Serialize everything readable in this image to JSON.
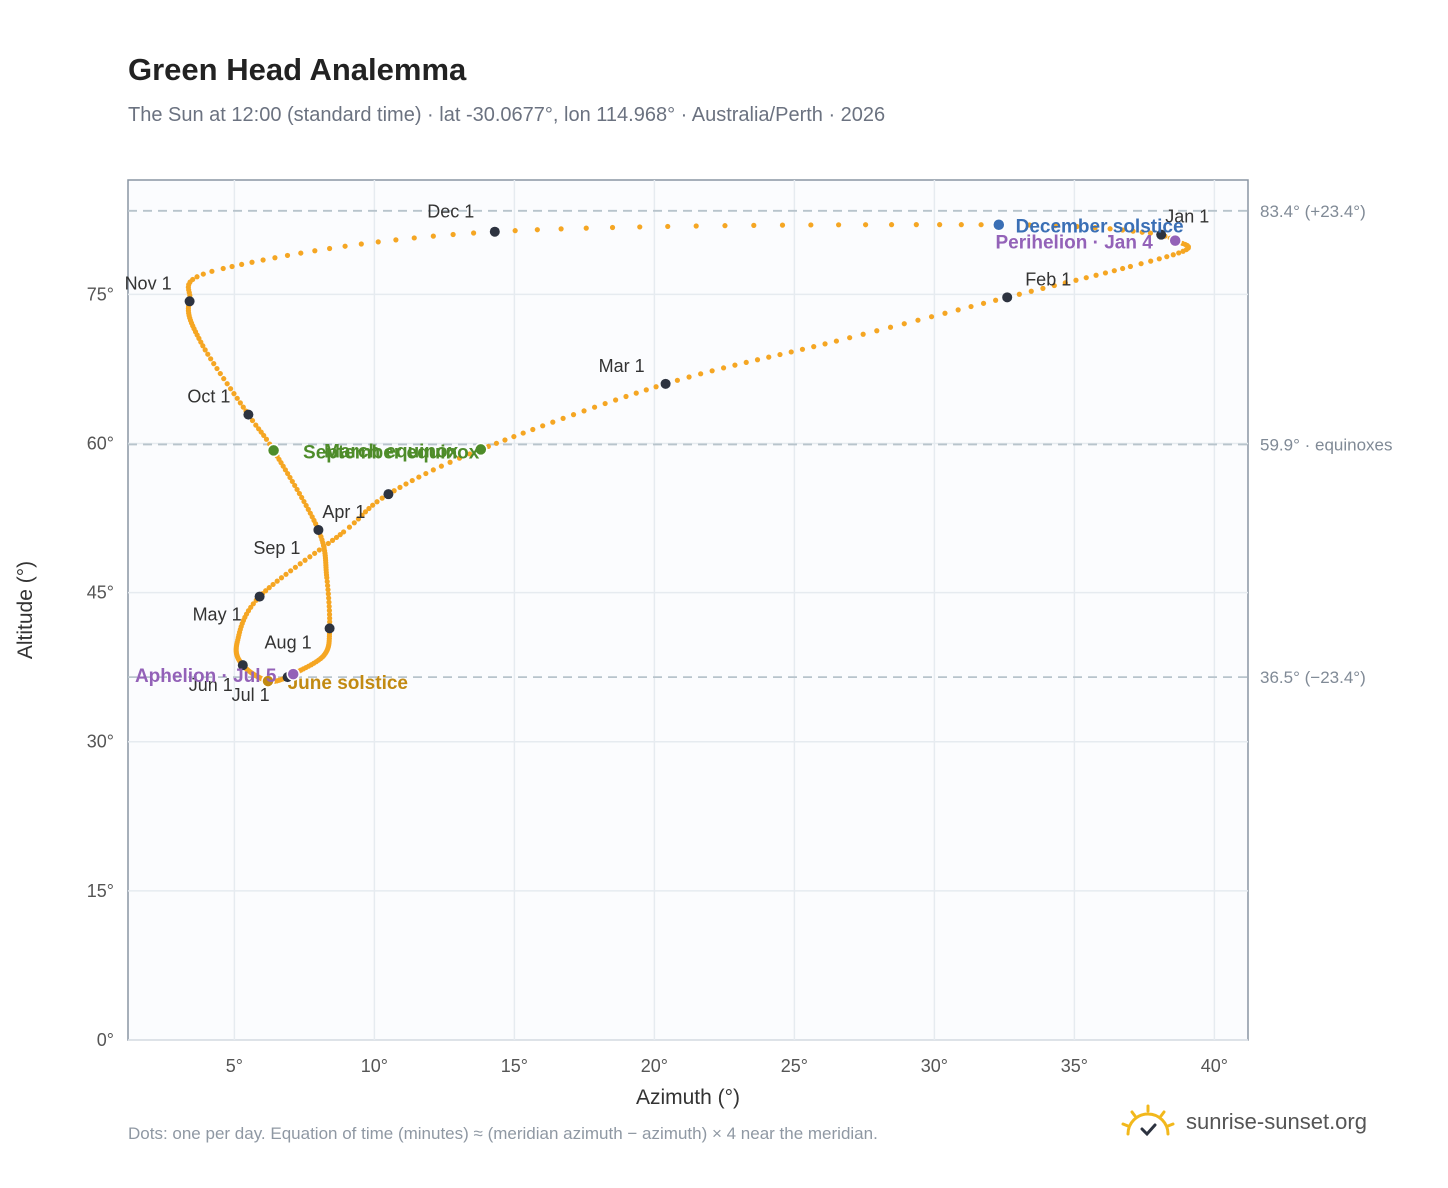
{
  "header": {
    "title": "Green Head Analemma",
    "subtitle": "The Sun at 12:00 (standard time) · lat -30.0677°, lon 114.968° · Australia/Perth · 2026"
  },
  "footer": {
    "note": "Dots: one per day. Equation of time (minutes) ≈ (meridian azimuth − azimuth) × 4 near the meridian.",
    "brand": "sunrise-sunset.org"
  },
  "colors": {
    "curve": "#f5a623",
    "month_dot": "#2d3340",
    "equinox": "#4e8c2a",
    "december_solstice": "#3a6fb5",
    "june_solstice": "#c28a12",
    "apsis": "#9362b8",
    "plot_bg": "#fbfcfe",
    "grid": "#e6ebf0",
    "ref_line": "#b8c4cc",
    "axis": "#8a95a3"
  },
  "chart_data": {
    "type": "scatter",
    "xlabel": "Azimuth (°)",
    "ylabel": "Altitude (°)",
    "xlim": [
      1.2,
      41.2
    ],
    "ylim": [
      0,
      86.5
    ],
    "x_ticks": [
      5,
      10,
      15,
      20,
      25,
      30,
      35,
      40
    ],
    "x_tick_labels": [
      "5°",
      "10°",
      "15°",
      "20°",
      "25°",
      "30°",
      "35°",
      "40°"
    ],
    "y_ticks": [
      0,
      15,
      30,
      45,
      60,
      75
    ],
    "y_tick_labels": [
      "0°",
      "15°",
      "30°",
      "45°",
      "60°",
      "75°"
    ],
    "grid": true,
    "curve_keypoints": [
      {
        "day": 1,
        "x": 38.1,
        "y": 81.0
      },
      {
        "day": 4,
        "x": 38.6,
        "y": 80.4
      },
      {
        "day": 12,
        "x": 39.0,
        "y": 79.5
      },
      {
        "day": 20,
        "x": 37.0,
        "y": 77.8
      },
      {
        "day": 32,
        "x": 32.6,
        "y": 74.7
      },
      {
        "day": 45,
        "x": 26.5,
        "y": 70.3
      },
      {
        "day": 60,
        "x": 20.4,
        "y": 66.0
      },
      {
        "day": 79,
        "x": 13.8,
        "y": 59.4
      },
      {
        "day": 91,
        "x": 10.5,
        "y": 54.9
      },
      {
        "day": 101,
        "x": 8.9,
        "y": 51.1
      },
      {
        "day": 121,
        "x": 5.9,
        "y": 44.6
      },
      {
        "day": 136,
        "x": 5.1,
        "y": 40.0
      },
      {
        "day": 152,
        "x": 5.3,
        "y": 37.7
      },
      {
        "day": 172,
        "x": 6.2,
        "y": 36.1
      },
      {
        "day": 182,
        "x": 6.9,
        "y": 36.5
      },
      {
        "day": 186,
        "x": 7.1,
        "y": 36.8
      },
      {
        "day": 200,
        "x": 8.2,
        "y": 38.7
      },
      {
        "day": 213,
        "x": 8.4,
        "y": 41.4
      },
      {
        "day": 226,
        "x": 8.3,
        "y": 46.5
      },
      {
        "day": 244,
        "x": 8.0,
        "y": 51.3
      },
      {
        "day": 266,
        "x": 6.4,
        "y": 59.3
      },
      {
        "day": 274,
        "x": 5.5,
        "y": 62.9
      },
      {
        "day": 290,
        "x": 3.8,
        "y": 70.2
      },
      {
        "day": 305,
        "x": 3.4,
        "y": 74.3
      },
      {
        "day": 317,
        "x": 4.6,
        "y": 77.6
      },
      {
        "day": 335,
        "x": 14.3,
        "y": 81.3
      },
      {
        "day": 355,
        "x": 32.3,
        "y": 82.0
      },
      {
        "day": 365,
        "x": 38.0,
        "y": 81.1
      }
    ],
    "month_markers": [
      {
        "label": "Jan 1",
        "x": 38.1,
        "y": 81.0,
        "dx": 4,
        "dy": -12,
        "anchor": "start"
      },
      {
        "label": "Feb 1",
        "x": 32.6,
        "y": 74.7,
        "dx": 18,
        "dy": -12,
        "anchor": "start"
      },
      {
        "label": "Mar 1",
        "x": 20.4,
        "y": 66.0,
        "dx": -44,
        "dy": -12,
        "anchor": "middle"
      },
      {
        "label": "Apr 1",
        "x": 10.5,
        "y": 54.9,
        "dx": -66,
        "dy": 24,
        "anchor": "start"
      },
      {
        "label": "May 1",
        "x": 5.9,
        "y": 44.6,
        "dx": -18,
        "dy": 24,
        "anchor": "end"
      },
      {
        "label": "Jun 1",
        "x": 5.3,
        "y": 37.7,
        "dx": -10,
        "dy": 26,
        "anchor": "end"
      },
      {
        "label": "Jul 1",
        "x": 6.9,
        "y": 36.5,
        "dx": -18,
        "dy": 24,
        "anchor": "end"
      },
      {
        "label": "Aug 1",
        "x": 8.4,
        "y": 41.4,
        "dx": -18,
        "dy": 20,
        "anchor": "end"
      },
      {
        "label": "Sep 1",
        "x": 8.0,
        "y": 51.3,
        "dx": -18,
        "dy": 24,
        "anchor": "end"
      },
      {
        "label": "Oct 1",
        "x": 5.5,
        "y": 62.9,
        "dx": -18,
        "dy": -12,
        "anchor": "end"
      },
      {
        "label": "Nov 1",
        "x": 3.4,
        "y": 74.3,
        "dx": -18,
        "dy": -12,
        "anchor": "end"
      },
      {
        "label": "Dec 1",
        "x": 14.3,
        "y": 81.3,
        "dx": -44,
        "dy": -14,
        "anchor": "middle"
      }
    ],
    "events": [
      {
        "name": "March equinox",
        "label": "March equinox",
        "x": 13.8,
        "y": 59.4,
        "color": "#4e8c2a",
        "label_x": 10.6,
        "anchor": "middle"
      },
      {
        "name": "September equinox",
        "label": "September equinox",
        "x": 6.4,
        "y": 59.3,
        "color": "#4e8c2a",
        "label_x": 10.6,
        "anchor": "middle"
      },
      {
        "name": "December solstice",
        "label": "December solstice",
        "x": 32.3,
        "y": 82.0,
        "color": "#3a6fb5",
        "label_x": 32.9,
        "anchor": "start"
      },
      {
        "name": "June solstice",
        "label": "June solstice",
        "x": 6.2,
        "y": 36.1,
        "color": "#c28a12",
        "label_x": 6.9,
        "anchor": "start"
      },
      {
        "name": "Perihelion",
        "label": "Perihelion · Jan 4",
        "x": 38.6,
        "y": 80.4,
        "color": "#9362b8",
        "label_x": 37.8,
        "anchor": "end"
      },
      {
        "name": "Aphelion",
        "label": "Aphelion · Jul 5",
        "x": 7.1,
        "y": 36.8,
        "color": "#9362b8",
        "label_x": 6.5,
        "anchor": "end"
      }
    ],
    "reference_lines": [
      {
        "y": 83.4,
        "label": "83.4° (+23.4°)"
      },
      {
        "y": 59.9,
        "label": "59.9° · equinoxes"
      },
      {
        "y": 36.5,
        "label": "36.5° (−23.4°)"
      }
    ]
  }
}
